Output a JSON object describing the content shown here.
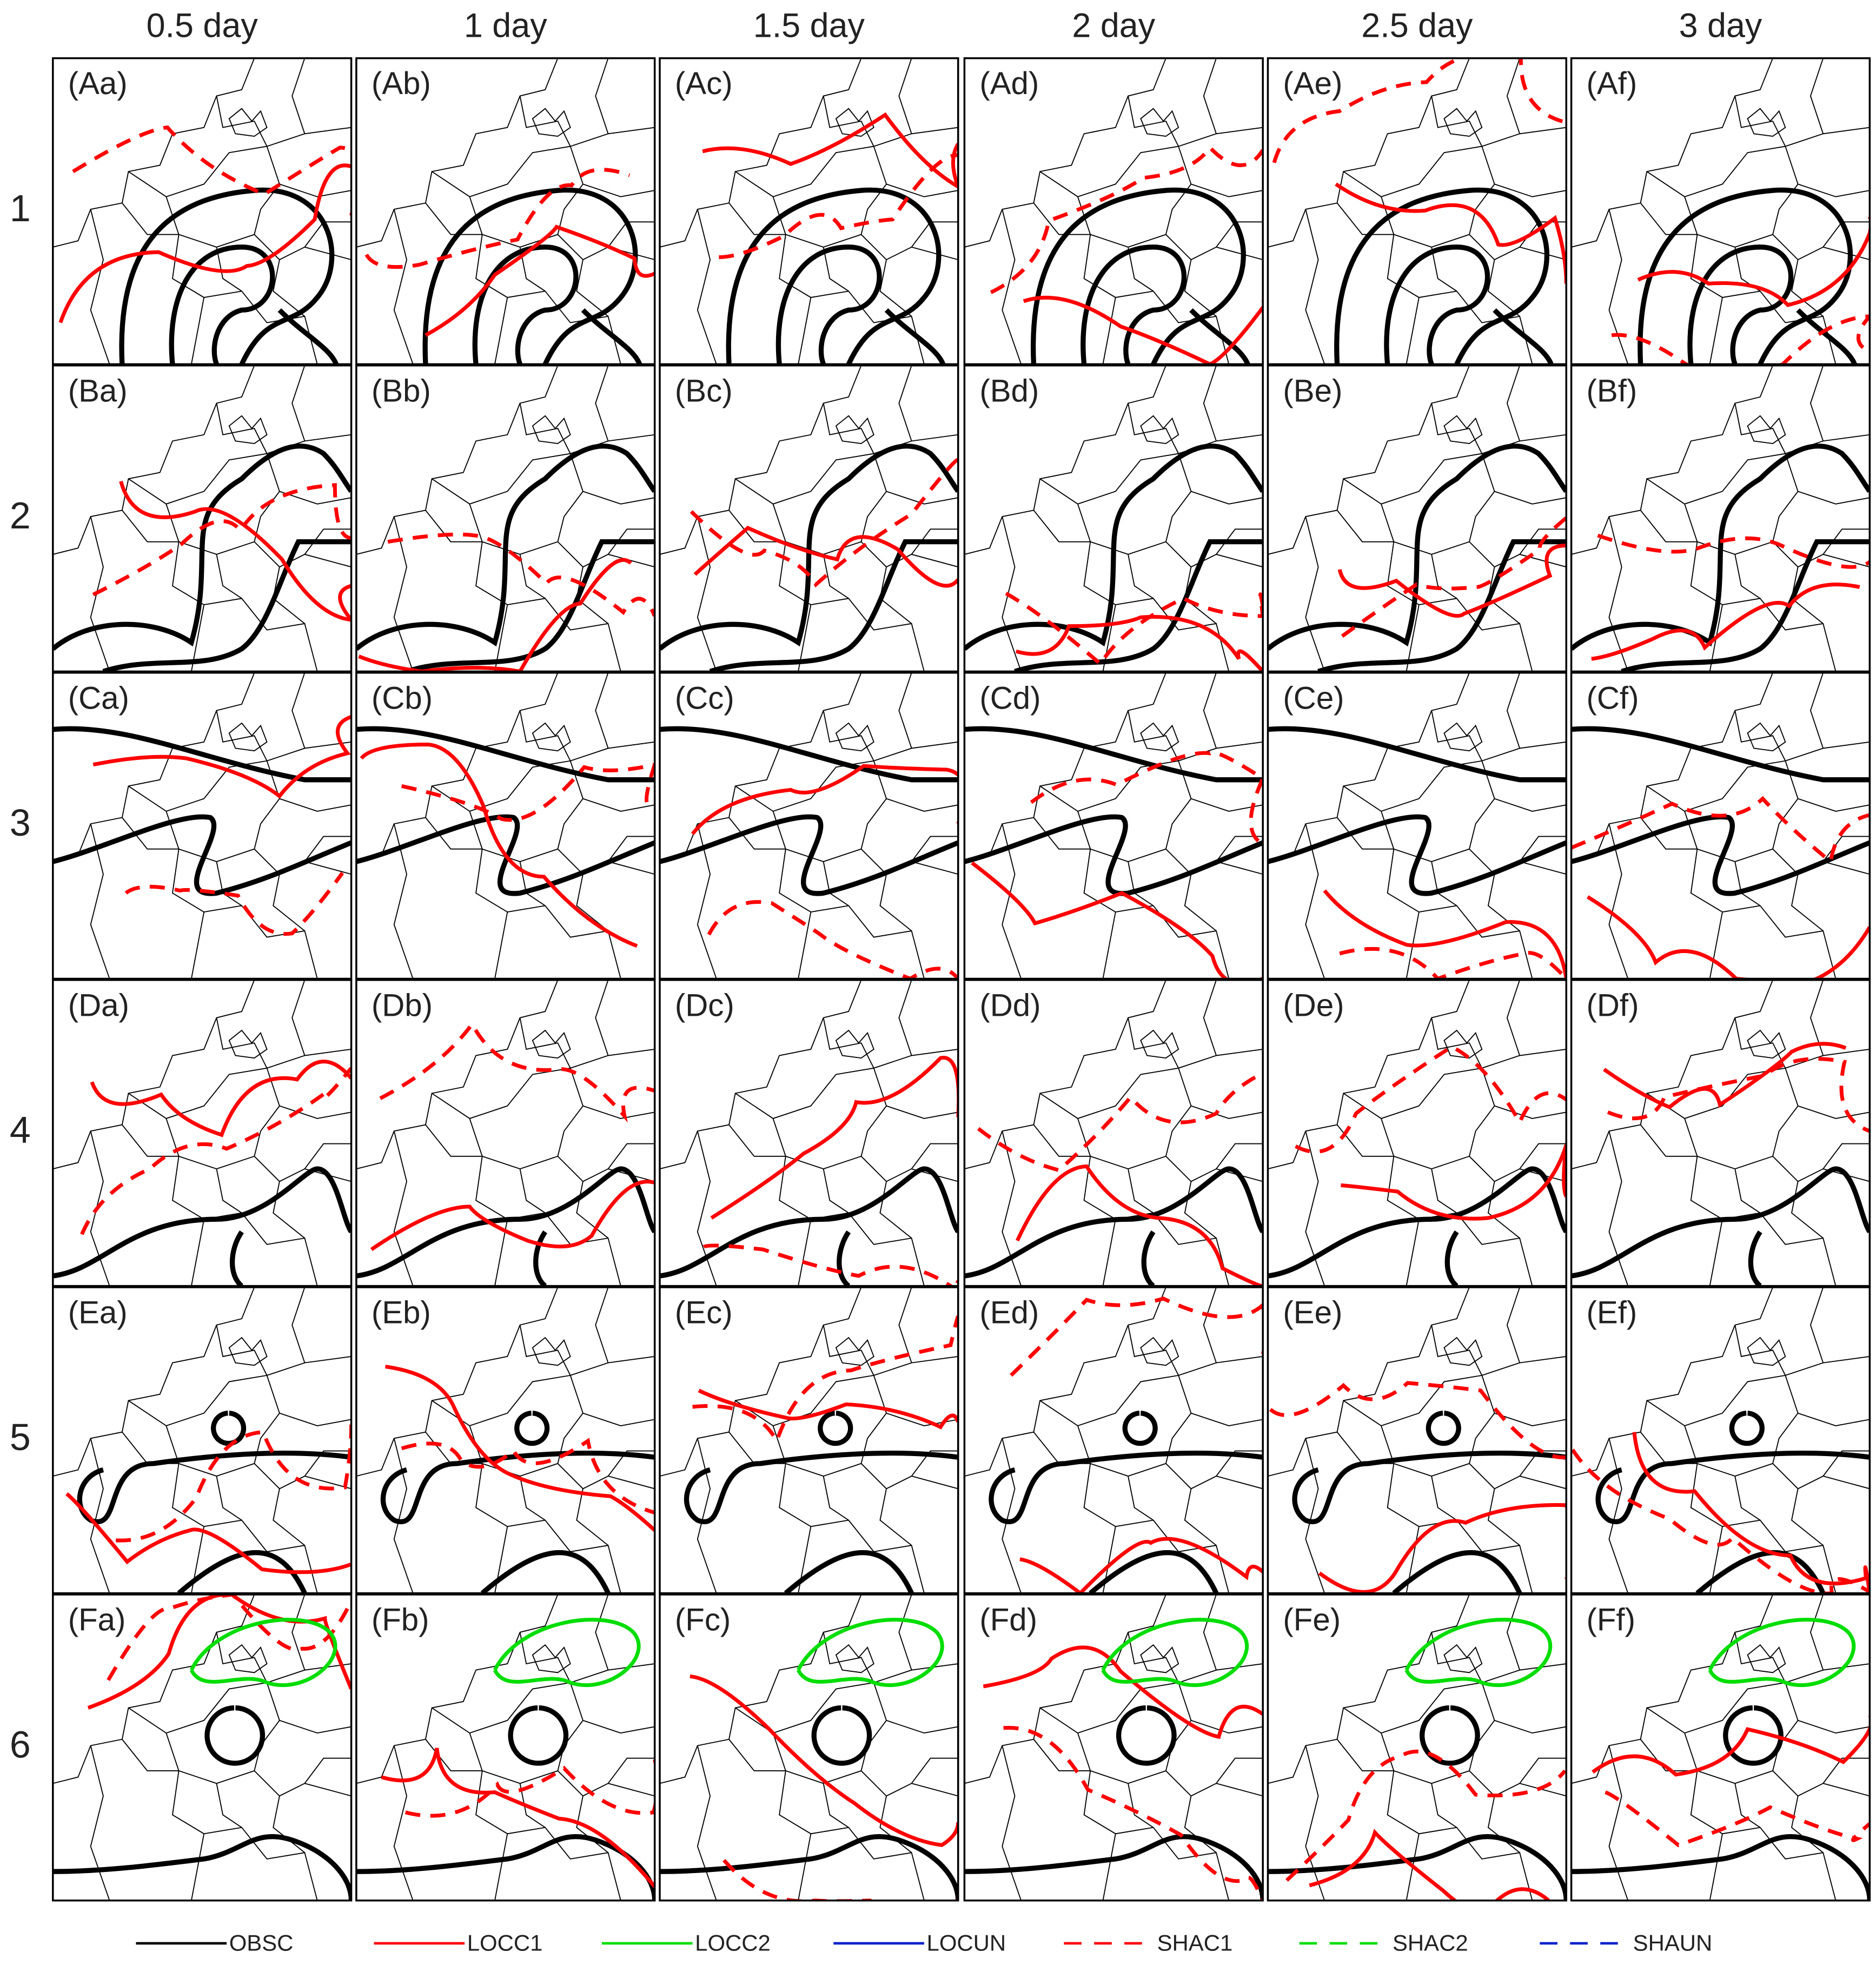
{
  "column_headers": [
    "0.5 day",
    "1 day",
    "1.5 day",
    "2 day",
    "2.5 day",
    "3 day"
  ],
  "row_labels": [
    "1",
    "2",
    "3",
    "4",
    "5",
    "6"
  ],
  "panels": [
    [
      "(Aa)",
      "(Ab)",
      "(Ac)",
      "(Ad)",
      "(Ae)",
      "(Af)"
    ],
    [
      "(Ba)",
      "(Bb)",
      "(Bc)",
      "(Bd)",
      "(Be)",
      "(Bf)"
    ],
    [
      "(Ca)",
      "(Cb)",
      "(Cc)",
      "(Cd)",
      "(Ce)",
      "(Cf)"
    ],
    [
      "(Da)",
      "(Db)",
      "(Dc)",
      "(Dd)",
      "(De)",
      "(Df)"
    ],
    [
      "(Ea)",
      "(Eb)",
      "(Ec)",
      "(Ed)",
      "(Ee)",
      "(Ef)"
    ],
    [
      "(Fa)",
      "(Fb)",
      "(Fc)",
      "(Fd)",
      "(Fe)",
      "(Ff)"
    ]
  ],
  "legend": [
    {
      "label": "OBSC",
      "color": "#000000",
      "dashed": false
    },
    {
      "label": "LOCC1",
      "color": "#ff0000",
      "dashed": false
    },
    {
      "label": "LOCC2",
      "color": "#00dd00",
      "dashed": false
    },
    {
      "label": "LOCUN",
      "color": "#0022cc",
      "dashed": false
    },
    {
      "label": "SHAC1",
      "color": "#ff0000",
      "dashed": true
    },
    {
      "label": "SHAC2",
      "color": "#00dd00",
      "dashed": true
    },
    {
      "label": "SHAUN",
      "color": "#0022cc",
      "dashed": true
    }
  ]
}
